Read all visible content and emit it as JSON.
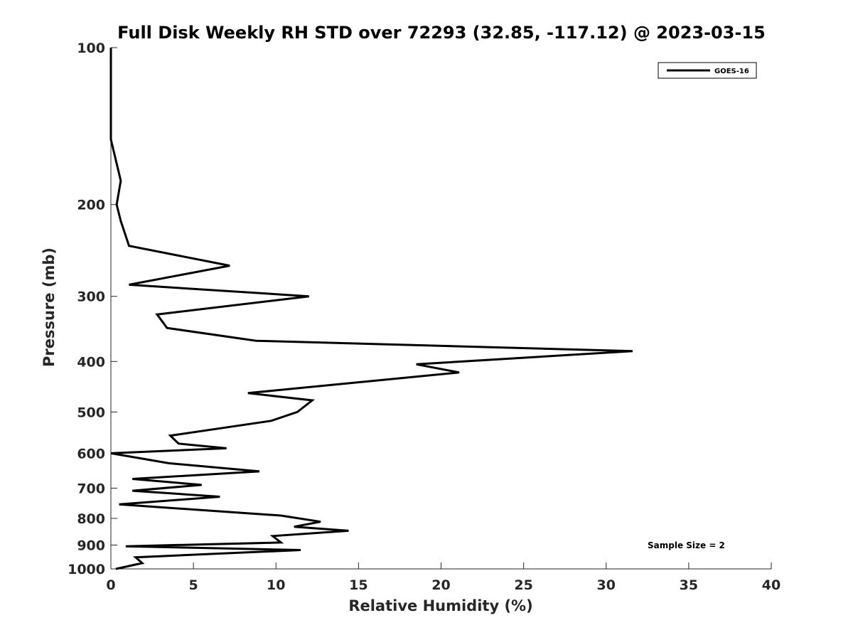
{
  "chart_data": {
    "type": "line",
    "title": "Full Disk Weekly RH STD over 72293 (32.85, -117.12) @ 2023-03-15",
    "xlabel": "Relative Humidity (%)",
    "ylabel": "Pressure (mb)",
    "xlim": [
      0,
      40
    ],
    "ylim": [
      100,
      1000
    ],
    "yscale": "log",
    "yreversed": true,
    "grid": false,
    "legend_position": "top-right",
    "x_ticks": [
      "0",
      "5",
      "10",
      "15",
      "20",
      "25",
      "30",
      "35",
      "40"
    ],
    "y_ticks": [
      "100",
      "200",
      "300",
      "400",
      "500",
      "600",
      "700",
      "800",
      "900",
      "1000"
    ],
    "annotation": "Sample Size = 2",
    "series": [
      {
        "name": "GOES-16",
        "color": "#000000",
        "points": [
          [
            0,
            100
          ],
          [
            0,
            150
          ],
          [
            0.6,
            180
          ],
          [
            0.35,
            200
          ],
          [
            0.6,
            215
          ],
          [
            1.1,
            240
          ],
          [
            7.2,
            262
          ],
          [
            1.1,
            285
          ],
          [
            12.0,
            300
          ],
          [
            2.8,
            325
          ],
          [
            3.4,
            345
          ],
          [
            8.8,
            365
          ],
          [
            31.6,
            382
          ],
          [
            18.5,
            405
          ],
          [
            21.1,
            420
          ],
          [
            8.3,
            460
          ],
          [
            12.2,
            475
          ],
          [
            11.3,
            500
          ],
          [
            9.7,
            520
          ],
          [
            3.6,
            555
          ],
          [
            4.1,
            575
          ],
          [
            7.0,
            587
          ],
          [
            0,
            600
          ],
          [
            3.5,
            627
          ],
          [
            9.0,
            650
          ],
          [
            1.3,
            672
          ],
          [
            5.5,
            690
          ],
          [
            1.3,
            708
          ],
          [
            6.6,
            727
          ],
          [
            0.5,
            752
          ],
          [
            10.3,
            790
          ],
          [
            12.7,
            812
          ],
          [
            11.1,
            830
          ],
          [
            14.4,
            845
          ],
          [
            9.8,
            865
          ],
          [
            10.3,
            890
          ],
          [
            0.9,
            905
          ],
          [
            11.5,
            920
          ],
          [
            1.5,
            950
          ],
          [
            1.9,
            975
          ],
          [
            0.3,
            1000
          ]
        ]
      }
    ]
  }
}
